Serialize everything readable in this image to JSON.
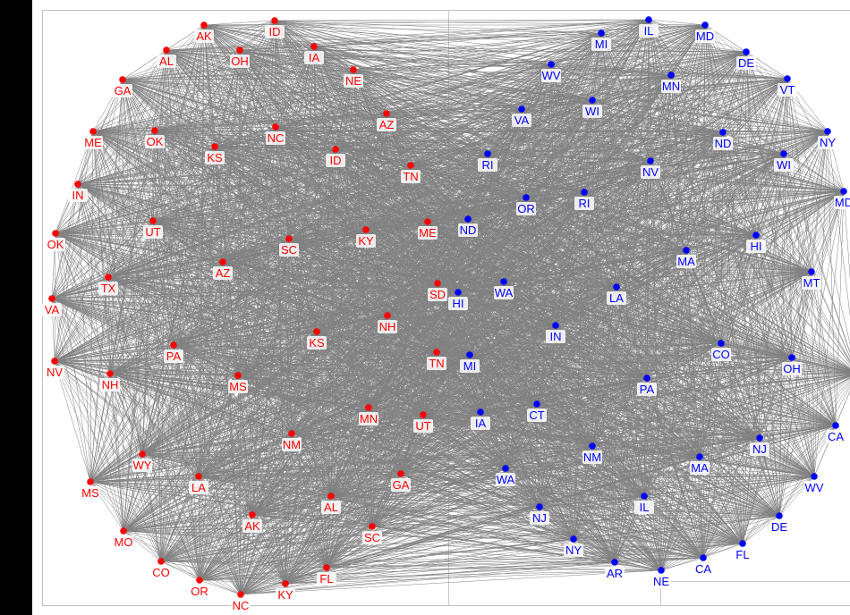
{
  "colors": {
    "group_a": "#ff0000",
    "group_b": "#0000ff",
    "edge": "#808080",
    "label_bg": "#ffffff"
  },
  "graph": {
    "edge_style": "complete",
    "nodes": [
      {
        "label": "AK",
        "group": "a"
      },
      {
        "label": "ID",
        "group": "a"
      },
      {
        "label": "AL",
        "group": "a"
      },
      {
        "label": "OH",
        "group": "a"
      },
      {
        "label": "IA",
        "group": "a"
      },
      {
        "label": "NE",
        "group": "a"
      },
      {
        "label": "GA",
        "group": "a"
      },
      {
        "label": "AZ",
        "group": "a"
      },
      {
        "label": "ME",
        "group": "a"
      },
      {
        "label": "OK",
        "group": "a"
      },
      {
        "label": "NC",
        "group": "a"
      },
      {
        "label": "KS",
        "group": "a"
      },
      {
        "label": "ID",
        "group": "a"
      },
      {
        "label": "TN",
        "group": "a"
      },
      {
        "label": "IN",
        "group": "a"
      },
      {
        "label": "UT",
        "group": "a"
      },
      {
        "label": "OK",
        "group": "a"
      },
      {
        "label": "SC",
        "group": "a"
      },
      {
        "label": "KY",
        "group": "a"
      },
      {
        "label": "ME",
        "group": "a"
      },
      {
        "label": "AZ",
        "group": "a"
      },
      {
        "label": "TX",
        "group": "a"
      },
      {
        "label": "SD",
        "group": "a"
      },
      {
        "label": "VA",
        "group": "a"
      },
      {
        "label": "NH",
        "group": "a"
      },
      {
        "label": "KS",
        "group": "a"
      },
      {
        "label": "PA",
        "group": "a"
      },
      {
        "label": "NV",
        "group": "a"
      },
      {
        "label": "NH",
        "group": "a"
      },
      {
        "label": "TN",
        "group": "a"
      },
      {
        "label": "MS",
        "group": "a"
      },
      {
        "label": "MN",
        "group": "a"
      },
      {
        "label": "UT",
        "group": "a"
      },
      {
        "label": "NM",
        "group": "a"
      },
      {
        "label": "WY",
        "group": "a"
      },
      {
        "label": "LA",
        "group": "a"
      },
      {
        "label": "MS",
        "group": "a"
      },
      {
        "label": "GA",
        "group": "a"
      },
      {
        "label": "AL",
        "group": "a"
      },
      {
        "label": "AK",
        "group": "a"
      },
      {
        "label": "SC",
        "group": "a"
      },
      {
        "label": "MO",
        "group": "a"
      },
      {
        "label": "CO",
        "group": "a"
      },
      {
        "label": "FL",
        "group": "a"
      },
      {
        "label": "OR",
        "group": "a"
      },
      {
        "label": "KY",
        "group": "a"
      },
      {
        "label": "NC",
        "group": "a"
      },
      {
        "label": "IL",
        "group": "b"
      },
      {
        "label": "MD",
        "group": "b"
      },
      {
        "label": "MI",
        "group": "b"
      },
      {
        "label": "DE",
        "group": "b"
      },
      {
        "label": "WV",
        "group": "b"
      },
      {
        "label": "MN",
        "group": "b"
      },
      {
        "label": "VT",
        "group": "b"
      },
      {
        "label": "WI",
        "group": "b"
      },
      {
        "label": "VA",
        "group": "b"
      },
      {
        "label": "ND",
        "group": "b"
      },
      {
        "label": "NY",
        "group": "b"
      },
      {
        "label": "WI",
        "group": "b"
      },
      {
        "label": "RI",
        "group": "b"
      },
      {
        "label": "NV",
        "group": "b"
      },
      {
        "label": "MD",
        "group": "b"
      },
      {
        "label": "OR",
        "group": "b"
      },
      {
        "label": "RI",
        "group": "b"
      },
      {
        "label": "ND",
        "group": "b"
      },
      {
        "label": "HI",
        "group": "b"
      },
      {
        "label": "MA",
        "group": "b"
      },
      {
        "label": "MT",
        "group": "b"
      },
      {
        "label": "WA",
        "group": "b"
      },
      {
        "label": "LA",
        "group": "b"
      },
      {
        "label": "HI",
        "group": "b"
      },
      {
        "label": "IN",
        "group": "b"
      },
      {
        "label": "CO",
        "group": "b"
      },
      {
        "label": "OH",
        "group": "b"
      },
      {
        "label": "PA",
        "group": "b"
      },
      {
        "label": "MI",
        "group": "b"
      },
      {
        "label": "M",
        "group": "b"
      },
      {
        "label": "CT",
        "group": "b"
      },
      {
        "label": "IA",
        "group": "b"
      },
      {
        "label": "CA",
        "group": "b"
      },
      {
        "label": "NJ",
        "group": "b"
      },
      {
        "label": "NM",
        "group": "b"
      },
      {
        "label": "MA",
        "group": "b"
      },
      {
        "label": "WA",
        "group": "b"
      },
      {
        "label": "WV",
        "group": "b"
      },
      {
        "label": "IL",
        "group": "b"
      },
      {
        "label": "NJ",
        "group": "b"
      },
      {
        "label": "DE",
        "group": "b"
      },
      {
        "label": "NY",
        "group": "b"
      },
      {
        "label": "FL",
        "group": "b"
      },
      {
        "label": "AR",
        "group": "b"
      },
      {
        "label": "CA",
        "group": "b"
      },
      {
        "label": "NE",
        "group": "b"
      }
    ]
  }
}
